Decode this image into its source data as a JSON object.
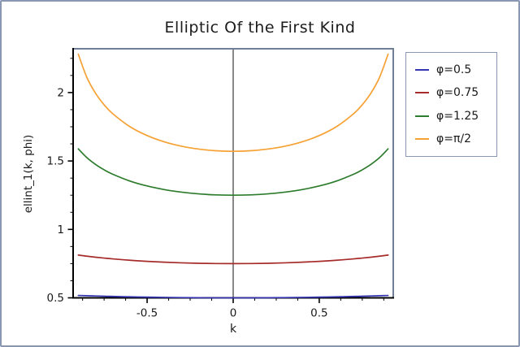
{
  "window": {
    "background": "#ffffff",
    "border_color": "#8997b2"
  },
  "styles": {
    "frame_color": "#6e7f97",
    "axis_color": "#000000",
    "zero_line_color": "#111111",
    "text_color": "#1a1a1a"
  },
  "chart_data": {
    "type": "line",
    "title": "Elliptic Of the First Kind",
    "xlabel": "k",
    "ylabel": "ellint_1(k, phi)",
    "xlim": [
      -0.93,
      0.93
    ],
    "ylim": [
      0.5,
      2.32
    ],
    "grid": false,
    "legend_position": "outside-right",
    "zero_line_x": 0,
    "x_major_ticks": {
      "values": [
        -0.5,
        0,
        0.5
      ],
      "labels": [
        "-0.5",
        "0",
        "0.5"
      ]
    },
    "x_minor_ticks": [
      -0.875,
      -0.75,
      -0.625,
      -0.375,
      -0.25,
      -0.125,
      0.125,
      0.25,
      0.375,
      0.625,
      0.75,
      0.875
    ],
    "y_major_ticks": {
      "values": [
        0.5,
        1,
        1.5,
        2
      ],
      "labels": [
        "0.5",
        "1",
        "1.5",
        "2"
      ]
    },
    "y_minor_ticks": [
      0.625,
      0.75,
      0.875,
      1.125,
      1.25,
      1.375,
      1.625,
      1.75,
      1.875,
      2.125,
      2.25
    ],
    "x": [
      -0.9,
      -0.85,
      -0.8,
      -0.75,
      -0.7,
      -0.6,
      -0.5,
      -0.4,
      -0.3,
      -0.2,
      -0.1,
      0,
      0.1,
      0.2,
      0.3,
      0.4,
      0.5,
      0.6,
      0.7,
      0.75,
      0.8,
      0.85,
      0.9
    ],
    "series": [
      {
        "name": "φ=0.5",
        "color": "#3535b2",
        "values": [
          0.5176,
          0.51553,
          0.51362,
          0.51186,
          0.51024,
          0.50742,
          0.50509,
          0.50323,
          0.5018,
          0.5008,
          0.5002,
          0.5,
          0.5002,
          0.5008,
          0.5018,
          0.50323,
          0.50509,
          0.50742,
          0.51024,
          0.51186,
          0.51362,
          0.51553,
          0.5176
        ]
      },
      {
        "name": "φ=0.75",
        "color": "#a62c2a",
        "values": [
          0.81262,
          0.80439,
          0.79705,
          0.79047,
          0.78458,
          0.77457,
          0.76662,
          0.76042,
          0.75577,
          0.75253,
          0.75063,
          0.75,
          0.75063,
          0.75253,
          0.75577,
          0.76042,
          0.76662,
          0.77457,
          0.78458,
          0.79047,
          0.79705,
          0.80439,
          0.81262
        ]
      },
      {
        "name": "φ=1.25",
        "color": "#2d7c2d",
        "values": [
          1.5885,
          1.52425,
          1.47501,
          1.4356,
          1.40325,
          1.35339,
          1.31733,
          1.29108,
          1.27232,
          1.25968,
          1.25238,
          1.25,
          1.25238,
          1.25968,
          1.27232,
          1.29108,
          1.31733,
          1.35339,
          1.40325,
          1.4356,
          1.47501,
          1.52425,
          1.5885
        ]
      },
      {
        "name": "φ=π/2",
        "color": "#f6a133",
        "values": [
          2.28055,
          2.10995,
          1.9953,
          1.9109,
          1.84569,
          1.75075,
          1.68575,
          1.64,
          1.60805,
          1.58687,
          1.57475,
          1.5708,
          1.57475,
          1.58687,
          1.60805,
          1.64,
          1.68575,
          1.75075,
          1.84569,
          1.9109,
          1.9953,
          2.10995,
          2.28055
        ]
      }
    ]
  }
}
